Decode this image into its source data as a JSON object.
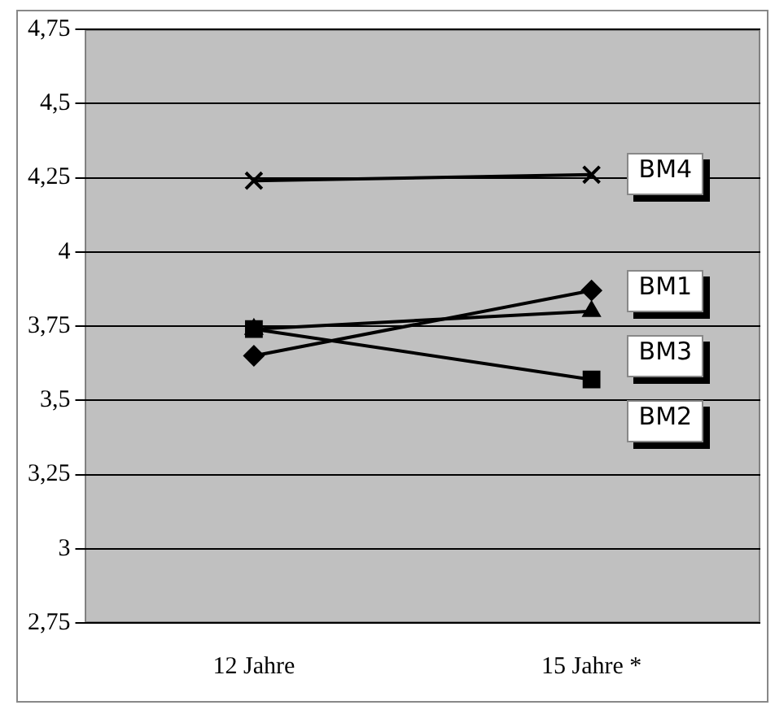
{
  "chart_data": {
    "type": "line",
    "categories": [
      "12 Jahre",
      "15 Jahre *"
    ],
    "series": [
      {
        "name": "BM4",
        "color": "#000000",
        "marker": "cross",
        "values": [
          4.24,
          4.26
        ]
      },
      {
        "name": "BM1",
        "color": "#000000",
        "marker": "diamond",
        "values": [
          3.65,
          3.87
        ]
      },
      {
        "name": "BM3",
        "color": "#000000",
        "marker": "triangle",
        "values": [
          3.74,
          3.8
        ]
      },
      {
        "name": "BM2",
        "color": "#000000",
        "marker": "square",
        "values": [
          3.74,
          3.57
        ]
      }
    ],
    "ylim": [
      2.75,
      4.75
    ],
    "yticks": [
      {
        "value": 2.75,
        "label": "2,75"
      },
      {
        "value": 3,
        "label": "3"
      },
      {
        "value": 3.25,
        "label": "3,25"
      },
      {
        "value": 3.5,
        "label": "3,5"
      },
      {
        "value": 3.75,
        "label": "3,75"
      },
      {
        "value": 4,
        "label": "4"
      },
      {
        "value": 4.25,
        "label": "4,25"
      },
      {
        "value": 4.5,
        "label": "4,5"
      },
      {
        "value": 4.75,
        "label": "4,75"
      }
    ],
    "grid": "y",
    "legend": "right",
    "line_style": "solid"
  }
}
